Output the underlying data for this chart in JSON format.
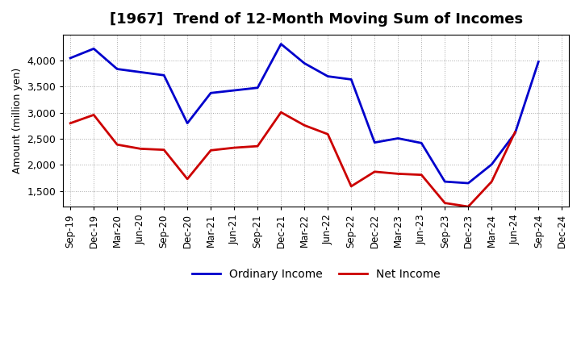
{
  "title": "[1967]  Trend of 12-Month Moving Sum of Incomes",
  "ylabel": "Amount (million yen)",
  "x_labels": [
    "Sep-19",
    "Dec-19",
    "Mar-20",
    "Jun-20",
    "Sep-20",
    "Dec-20",
    "Mar-21",
    "Jun-21",
    "Sep-21",
    "Dec-21",
    "Mar-22",
    "Jun-22",
    "Sep-22",
    "Dec-22",
    "Mar-23",
    "Jun-23",
    "Sep-23",
    "Dec-23",
    "Mar-24",
    "Jun-24",
    "Sep-24",
    "Dec-24"
  ],
  "ordinary_income": [
    4050,
    4230,
    3840,
    3780,
    3720,
    2800,
    3380,
    3430,
    3480,
    4320,
    3950,
    3700,
    3640,
    2430,
    2510,
    2420,
    1680,
    1650,
    2010,
    2610,
    3980,
    null
  ],
  "net_income": [
    2800,
    2960,
    2390,
    2310,
    2290,
    1730,
    2280,
    2330,
    2360,
    3010,
    2760,
    2590,
    1590,
    1870,
    1830,
    1810,
    1270,
    1200,
    1680,
    2630,
    null,
    null
  ],
  "ordinary_income_color": "#0000cc",
  "net_income_color": "#cc0000",
  "background_color": "#ffffff",
  "grid_color": "#aaaaaa",
  "ylim": [
    1200,
    4500
  ],
  "yticks": [
    1500,
    2000,
    2500,
    3000,
    3500,
    4000
  ],
  "legend_labels": [
    "Ordinary Income",
    "Net Income"
  ],
  "line_width": 2.0
}
